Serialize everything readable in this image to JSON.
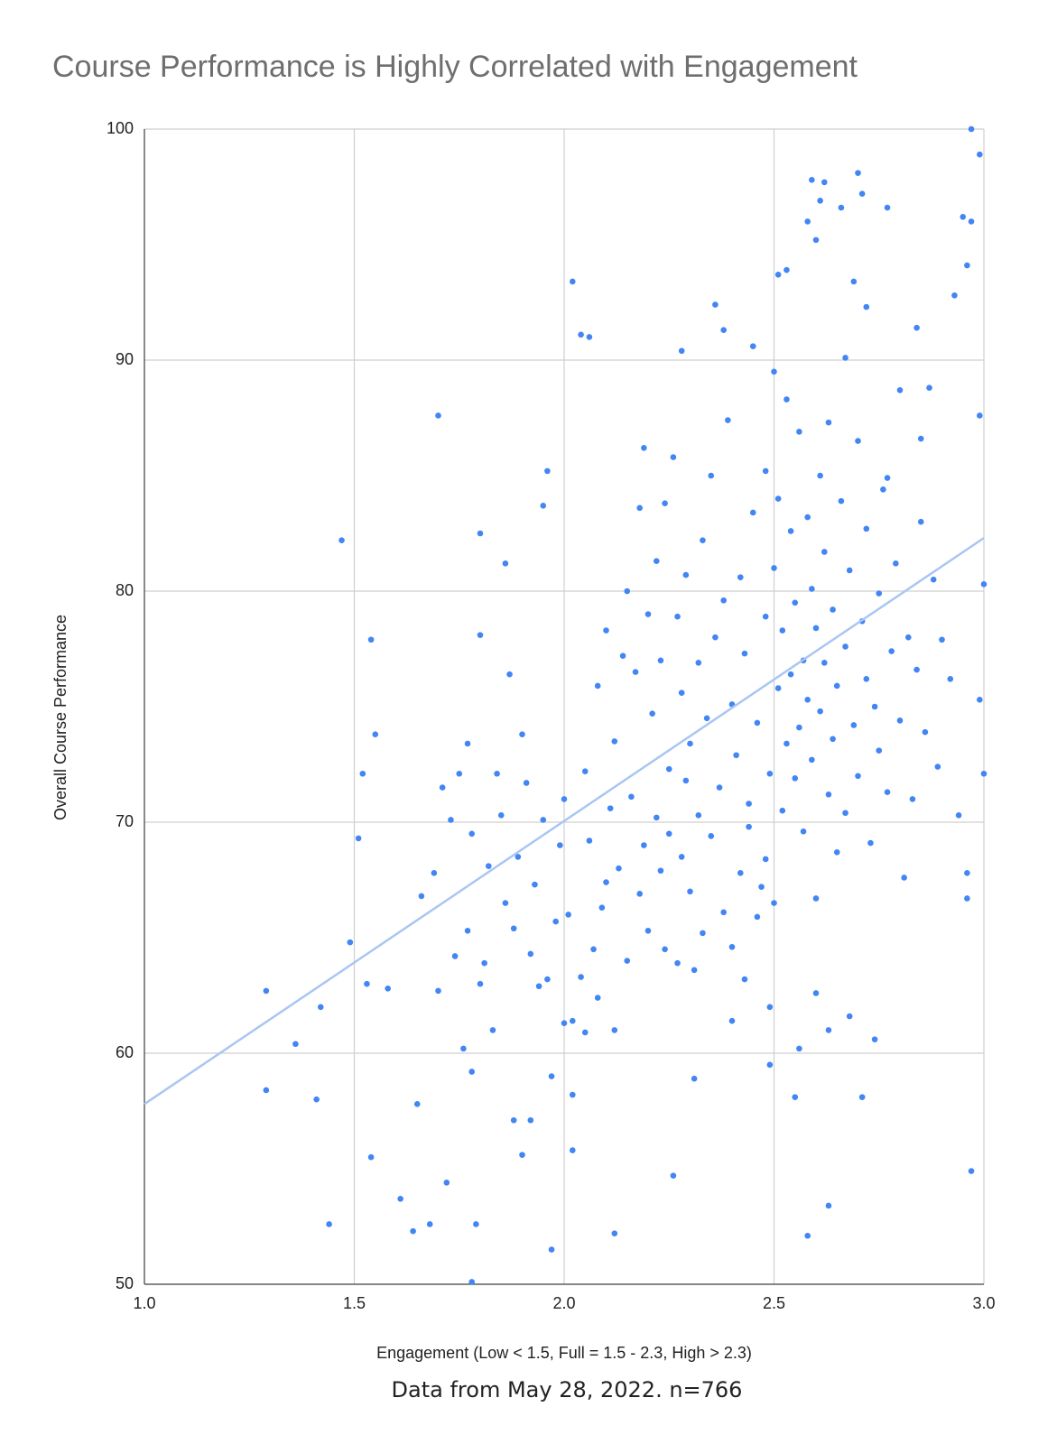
{
  "chart_data": {
    "type": "scatter",
    "title": "Course Performance is Highly Correlated with Engagement",
    "x_label": "Engagement (Low < 1.5, Full = 1.5 - 2.3, High > 2.3)",
    "y_label": "Overall Course Performance",
    "note": "Data from May 28, 2022.  n=766",
    "color": "#4285f4",
    "grid": true,
    "xlim": [
      1.0,
      3.0
    ],
    "ylim": [
      50,
      100
    ],
    "xticks": [
      {
        "value": 1.0,
        "label": "1.0"
      },
      1.5,
      {
        "value": 2.0,
        "label": "2.0"
      },
      2.5,
      {
        "value": 3.0,
        "label": "3.0"
      }
    ],
    "yticks": [
      50,
      60,
      70,
      80,
      90,
      100
    ],
    "x": [
      1.29,
      1.29,
      1.36,
      1.42,
      1.41,
      1.44,
      1.47,
      1.49,
      1.51,
      1.52,
      1.54,
      1.55,
      1.54,
      1.53,
      1.58,
      1.61,
      1.64,
      1.65,
      1.7,
      1.68,
      1.72,
      1.79,
      1.78,
      1.86,
      1.87,
      1.8,
      1.8,
      1.97,
      1.96,
      1.95,
      2.02,
      2.04,
      2.06,
      2.12,
      2.02,
      2.26,
      2.31,
      2.58,
      2.63,
      2.97,
      2.97,
      2.99,
      2.97,
      2.95,
      2.96,
      2.93,
      2.7,
      2.71,
      2.59,
      2.62,
      2.6,
      2.58,
      2.72,
      2.77,
      2.66,
      2.61,
      2.51,
      2.53,
      2.36,
      2.38,
      2.28,
      2.45,
      2.69,
      2.84,
      2.99,
      3.0,
      3.0,
      2.99,
      2.96,
      2.96,
      2.85,
      2.77,
      2.8,
      2.87,
      2.67,
      2.5,
      2.49,
      2.49,
      2.55,
      2.71,
      2.74,
      2.68,
      2.63,
      2.6,
      2.56,
      1.66,
      1.69,
      1.71,
      1.73,
      1.75,
      1.77,
      1.77,
      1.78,
      1.8,
      1.82,
      1.84,
      1.85,
      1.88,
      1.89,
      1.9,
      1.91,
      1.92,
      1.93,
      1.95,
      1.96,
      1.98,
      1.99,
      2.0,
      2.01,
      2.02,
      1.7,
      1.74,
      1.76,
      1.78,
      1.81,
      1.83,
      1.86,
      1.88,
      1.9,
      1.92,
      1.94,
      1.97,
      2.0,
      2.02,
      2.04,
      2.05,
      2.07,
      2.08,
      2.1,
      2.12,
      2.05,
      2.08,
      2.1,
      2.12,
      2.14,
      2.15,
      2.17,
      2.18,
      2.19,
      2.2,
      2.21,
      2.22,
      2.23,
      2.24,
      2.25,
      2.26,
      2.27,
      2.28,
      2.29,
      2.3,
      2.06,
      2.09,
      2.11,
      2.13,
      2.15,
      2.16,
      2.18,
      2.19,
      2.2,
      2.22,
      2.23,
      2.24,
      2.25,
      2.27,
      2.28,
      2.29,
      2.3,
      2.31,
      2.32,
      2.33,
      2.32,
      2.33,
      2.34,
      2.35,
      2.36,
      2.37,
      2.38,
      2.39,
      2.4,
      2.41,
      2.42,
      2.43,
      2.44,
      2.45,
      2.46,
      2.47,
      2.48,
      2.48,
      2.49,
      2.5,
      2.51,
      2.51,
      2.52,
      2.52,
      2.53,
      2.53,
      2.54,
      2.54,
      2.55,
      2.55,
      2.56,
      2.56,
      2.57,
      2.57,
      2.58,
      2.58,
      2.59,
      2.59,
      2.6,
      2.6,
      2.61,
      2.61,
      2.62,
      2.62,
      2.63,
      2.63,
      2.64,
      2.64,
      2.65,
      2.65,
      2.66,
      2.67,
      2.67,
      2.68,
      2.69,
      2.7,
      2.7,
      2.71,
      2.72,
      2.72,
      2.73,
      2.74,
      2.75,
      2.75,
      2.76,
      2.77,
      2.78,
      2.79,
      2.8,
      2.81,
      2.82,
      2.83,
      2.84,
      2.85,
      2.86,
      2.88,
      2.89,
      2.9,
      2.92,
      2.94,
      2.35,
      2.38,
      2.4,
      2.42,
      2.44,
      2.46,
      2.48,
      2.5,
      2.43,
      2.4
    ],
    "values": [
      62.7,
      58.4,
      60.4,
      62.0,
      58.0,
      52.6,
      82.2,
      64.8,
      69.3,
      72.1,
      77.9,
      73.8,
      55.5,
      63.0,
      62.8,
      53.7,
      52.3,
      57.8,
      87.6,
      52.6,
      54.4,
      52.6,
      50.1,
      81.2,
      76.4,
      78.1,
      82.5,
      51.5,
      85.2,
      83.7,
      93.4,
      91.1,
      91.0,
      52.2,
      55.8,
      54.7,
      58.9,
      52.1,
      53.4,
      54.9,
      100.0,
      98.9,
      96.0,
      96.2,
      94.1,
      92.8,
      98.1,
      97.2,
      97.8,
      97.7,
      95.2,
      96.0,
      92.3,
      96.6,
      96.6,
      96.9,
      93.7,
      93.9,
      92.4,
      91.3,
      90.4,
      90.6,
      93.4,
      91.4,
      87.6,
      80.3,
      72.1,
      75.3,
      67.8,
      66.7,
      86.6,
      84.9,
      88.7,
      88.8,
      90.1,
      89.5,
      62.0,
      59.5,
      58.1,
      58.1,
      60.6,
      61.6,
      61.0,
      62.6,
      60.2,
      66.8,
      67.8,
      71.5,
      70.1,
      72.1,
      65.3,
      73.4,
      69.5,
      63.0,
      68.1,
      72.1,
      70.3,
      65.4,
      68.5,
      73.8,
      71.7,
      64.3,
      67.3,
      70.1,
      63.2,
      65.7,
      69.0,
      71.0,
      66.0,
      61.4,
      62.7,
      64.2,
      60.2,
      59.2,
      63.9,
      61.0,
      66.5,
      57.1,
      55.6,
      57.1,
      62.9,
      59.0,
      61.3,
      58.2,
      63.3,
      60.9,
      64.5,
      62.4,
      67.4,
      61.0,
      72.2,
      75.9,
      78.3,
      73.5,
      77.2,
      80.0,
      76.5,
      83.6,
      86.2,
      79.0,
      74.7,
      81.3,
      77.0,
      83.8,
      72.3,
      85.8,
      78.9,
      75.6,
      80.7,
      73.4,
      69.2,
      66.3,
      70.6,
      68.0,
      64.0,
      71.1,
      66.9,
      69.0,
      65.3,
      70.2,
      67.9,
      64.5,
      69.5,
      63.9,
      68.5,
      71.8,
      67.0,
      63.6,
      70.3,
      65.2,
      76.9,
      82.2,
      74.5,
      85.0,
      78.0,
      71.5,
      79.6,
      87.4,
      75.1,
      72.9,
      80.6,
      77.3,
      69.8,
      83.4,
      74.3,
      67.2,
      78.9,
      85.2,
      72.1,
      81.0,
      75.8,
      84.0,
      70.5,
      78.3,
      73.4,
      88.3,
      76.4,
      82.6,
      71.9,
      79.5,
      74.1,
      86.9,
      77.0,
      69.6,
      83.2,
      75.3,
      80.1,
      72.7,
      78.4,
      66.7,
      85.0,
      74.8,
      76.9,
      81.7,
      71.2,
      87.3,
      73.6,
      79.2,
      68.7,
      75.9,
      83.9,
      77.6,
      70.4,
      80.9,
      74.2,
      86.5,
      72.0,
      78.7,
      76.2,
      82.7,
      69.1,
      75.0,
      79.9,
      73.1,
      84.4,
      71.3,
      77.4,
      81.2,
      74.4,
      67.6,
      78.0,
      71.0,
      76.6,
      83.0,
      73.9,
      80.5,
      72.4,
      77.9,
      76.2,
      70.3,
      69.4,
      66.1,
      64.6,
      67.8,
      70.8,
      65.9,
      68.4,
      66.5,
      63.2,
      61.4
    ],
    "trendline": {
      "color": "#a9c6f3",
      "x": [
        1.0,
        3.0
      ],
      "values": [
        57.8,
        82.3
      ]
    }
  }
}
